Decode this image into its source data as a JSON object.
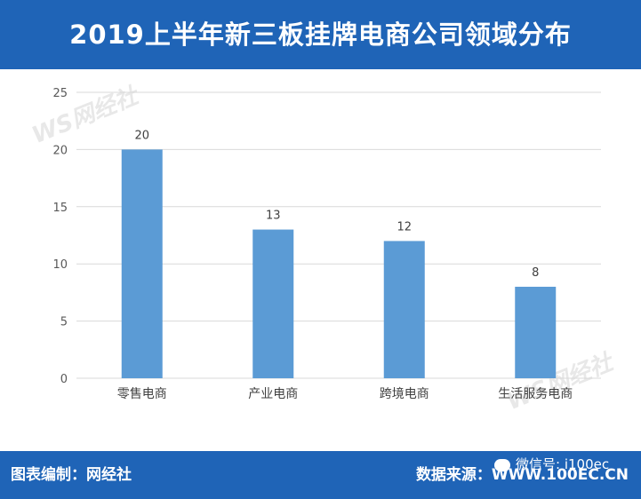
{
  "header": {
    "title": "2019上半年新三板挂牌电商公司领域分布"
  },
  "footer": {
    "left_text": "图表编制：网经社",
    "right_text": "数据来源：WWW.100EC.CN",
    "wechat_text": "微信号: i100ec"
  },
  "watermark": {
    "text": "WS网经社"
  },
  "colors": {
    "bar": "#5b9bd5",
    "banner": "#1f64b7",
    "grid": "#d9d9d9"
  },
  "chart_data": {
    "type": "bar",
    "categories": [
      "零售电商",
      "产业电商",
      "跨境电商",
      "生活服务电商"
    ],
    "values": [
      20,
      13,
      12,
      8
    ],
    "ylim": [
      0,
      25
    ],
    "yticks": [
      0,
      5,
      10,
      15,
      20,
      25
    ],
    "grid": true,
    "data_labels": true
  }
}
